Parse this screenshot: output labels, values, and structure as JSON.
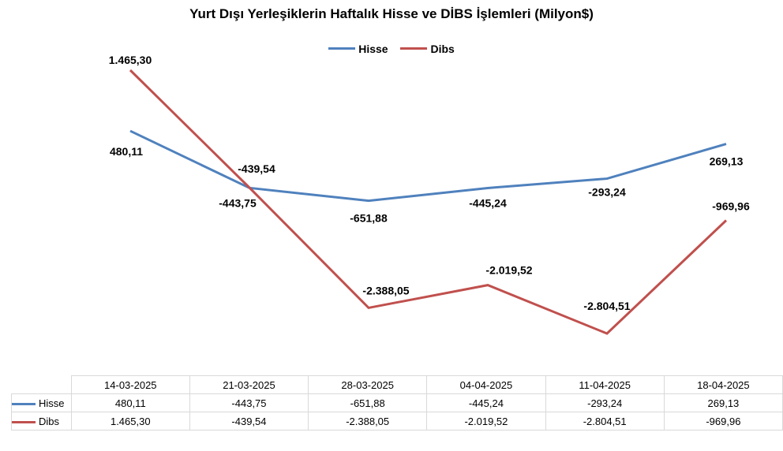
{
  "colors": {
    "hisse": "#4f81bd",
    "dibs": "#c0504d"
  },
  "chart_data": {
    "type": "line",
    "title": "Yurt Dışı Yerleşiklerin Haftalık Hisse ve DİBS İşlemleri (Milyon$)",
    "categories": [
      "14-03-2025",
      "21-03-2025",
      "28-03-2025",
      "04-04-2025",
      "11-04-2025",
      "18-04-2025"
    ],
    "series": [
      {
        "name": "Hisse",
        "values": [
          480.11,
          -443.75,
          -651.88,
          -445.24,
          -293.24,
          269.13
        ],
        "labels": [
          "480,11",
          "-443,75",
          "-651,88",
          "-445,24",
          "-293,24",
          "269,13"
        ]
      },
      {
        "name": "Dibs",
        "values": [
          1465.3,
          -439.54,
          -2388.05,
          -2019.52,
          -2804.51,
          -969.96
        ],
        "labels": [
          "1.465,30",
          "-439,54",
          "-2.388,05",
          "-2.019,52",
          "-2.804,51",
          "-969,96"
        ]
      }
    ],
    "legend": "top",
    "grid": false,
    "data_table": true
  }
}
